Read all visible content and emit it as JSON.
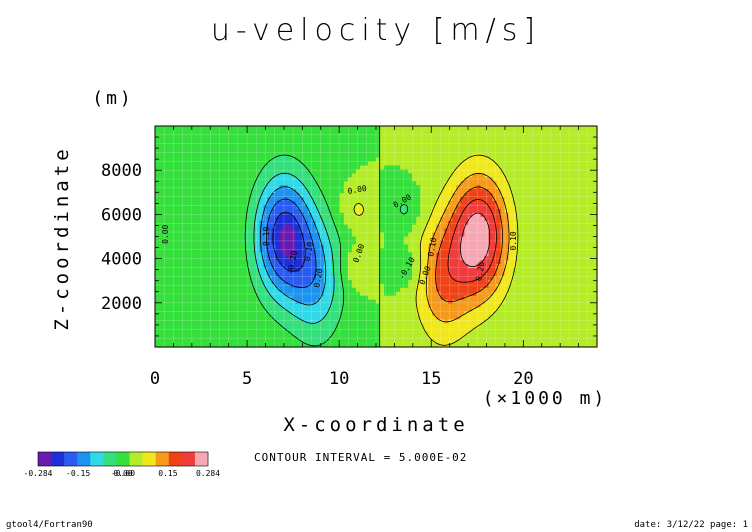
{
  "chart_data": {
    "type": "heatmap",
    "title": "u-velocity [m/s]",
    "xlabel": "X-coordinate",
    "x_unit": "(×1000 m)",
    "ylabel": "Z-coordinate",
    "y_unit": "(m)",
    "xlim": [
      0,
      24
    ],
    "ylim": [
      0,
      10000
    ],
    "x_ticks": [
      "0",
      "5",
      "10",
      "15",
      "20"
    ],
    "x_tick_values": [
      0,
      5,
      10,
      15,
      20
    ],
    "y_ticks": [
      "2000",
      "4000",
      "6000",
      "8000"
    ],
    "y_tick_values": [
      2000,
      4000,
      6000,
      8000
    ],
    "contour_interval": "CONTOUR INTERVAL = 5.000E-02",
    "colorbar_labels": [
      "-0.284",
      "-0.15",
      "-0.00",
      "0.00",
      "0.15",
      "0.284"
    ],
    "value_range": [
      -0.284,
      0.284
    ],
    "levels": [
      -0.284,
      -0.25,
      -0.2,
      -0.15,
      -0.1,
      -0.05,
      0,
      0.05,
      0.1,
      0.15,
      0.2,
      0.25,
      0.284
    ],
    "colors": [
      "#6a1aae",
      "#1c2fd8",
      "#2a5bf2",
      "#1e92ef",
      "#30d9e6",
      "#34e07c",
      "#36e03c",
      "#b4ec28",
      "#f0e81c",
      "#f59a1a",
      "#ef4218",
      "#f23c3c",
      "#f5a8b4"
    ],
    "features": [
      {
        "x": 7.0,
        "z": 5000,
        "sx": 1.6,
        "sz": 2800,
        "amp": -0.28
      },
      {
        "x": 8.8,
        "z": 3000,
        "sx": 1.5,
        "sz": 2800,
        "amp": -0.14
      },
      {
        "x": 17.6,
        "z": 5000,
        "sx": 1.6,
        "sz": 2800,
        "amp": 0.28
      },
      {
        "x": 15.6,
        "z": 3000,
        "sx": 1.5,
        "sz": 2800,
        "amp": 0.14
      },
      {
        "x": 11.0,
        "z": 6200,
        "sx": 0.9,
        "sz": 900,
        "amp": 0.06
      },
      {
        "x": 11.0,
        "z": 3600,
        "sx": 0.9,
        "sz": 900,
        "amp": 0.06
      },
      {
        "x": 13.6,
        "z": 6200,
        "sx": 0.9,
        "sz": 900,
        "amp": -0.06
      },
      {
        "x": 13.6,
        "z": 3600,
        "sx": 0.9,
        "sz": 900,
        "amp": -0.06
      }
    ],
    "contour_labels": [
      "0.00",
      "-0.10",
      "0.10",
      "-0.20",
      "0.20",
      "0.00",
      "0.00",
      "0.10",
      "-0.10",
      "0.00",
      "0.00",
      "0.10",
      "0.20"
    ],
    "grid": true
  },
  "footer": {
    "left": "gtool4/Fortran90",
    "right": "date: 3/12/22 page: 1"
  }
}
